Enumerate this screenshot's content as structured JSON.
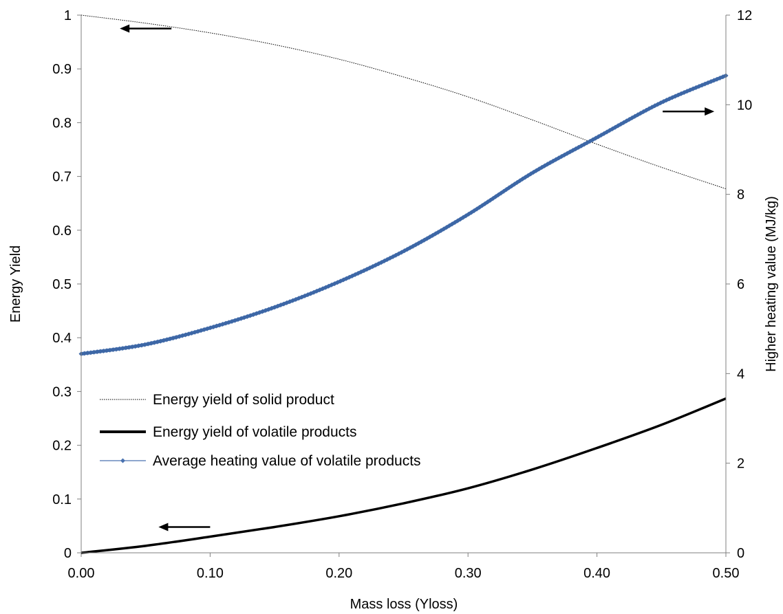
{
  "chart_data": {
    "type": "line",
    "title": "",
    "xlabel": "Mass loss (Yloss)",
    "ylabel": "Energy Yield",
    "y2label": "Higher heating value (MJ/kg)",
    "xlim": [
      0,
      0.5
    ],
    "ylim": [
      0,
      1
    ],
    "y2lim": [
      0,
      12
    ],
    "grid": false,
    "legend_position": "lower-left",
    "x_ticks": [
      "0.00",
      "0.10",
      "0.20",
      "0.30",
      "0.40",
      "0.50"
    ],
    "y_ticks": [
      "0",
      "0.1",
      "0.2",
      "0.3",
      "0.4",
      "0.5",
      "0.6",
      "0.7",
      "0.8",
      "0.9",
      "1"
    ],
    "y2_ticks": [
      "0",
      "2",
      "4",
      "6",
      "8",
      "10",
      "12"
    ],
    "x": [
      0.0,
      0.05,
      0.1,
      0.15,
      0.2,
      0.25,
      0.3,
      0.35,
      0.4,
      0.45,
      0.5
    ],
    "series": [
      {
        "name": "Energy yield of solid product",
        "axis": "left",
        "style": "dotted",
        "color": "#000000",
        "values": [
          1.0,
          0.985,
          0.967,
          0.945,
          0.918,
          0.885,
          0.848,
          0.805,
          0.76,
          0.717,
          0.677
        ]
      },
      {
        "name": "Energy yield of volatile products",
        "axis": "left",
        "style": "thick",
        "color": "#000000",
        "values": [
          0.0,
          0.013,
          0.03,
          0.048,
          0.068,
          0.092,
          0.12,
          0.155,
          0.195,
          0.238,
          0.287
        ]
      },
      {
        "name": "Average heating value of volatile products",
        "axis": "right",
        "style": "markers",
        "color": "#4a72b0",
        "values": [
          4.44,
          4.65,
          5.02,
          5.48,
          6.05,
          6.73,
          7.55,
          8.48,
          9.27,
          10.05,
          10.65
        ]
      }
    ],
    "arrows": [
      {
        "direction": "left",
        "series": "Energy yield of solid product"
      },
      {
        "direction": "right",
        "series": "Average heating value of volatile products"
      },
      {
        "direction": "left",
        "series": "Energy yield of volatile products"
      }
    ]
  }
}
